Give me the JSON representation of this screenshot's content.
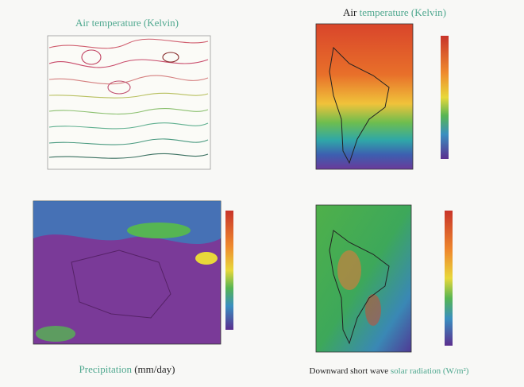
{
  "panels": [
    {
      "title": [
        "Air",
        "temperature (Kelvin)"
      ]
    },
    {
      "title": [
        "Air",
        "temperature (Kelvin)"
      ]
    },
    {
      "title": [
        "Precipitation",
        "(mm/day)"
      ]
    },
    {
      "title": [
        "Downward short wave",
        "solar radiation (W/m²)"
      ]
    }
  ]
}
